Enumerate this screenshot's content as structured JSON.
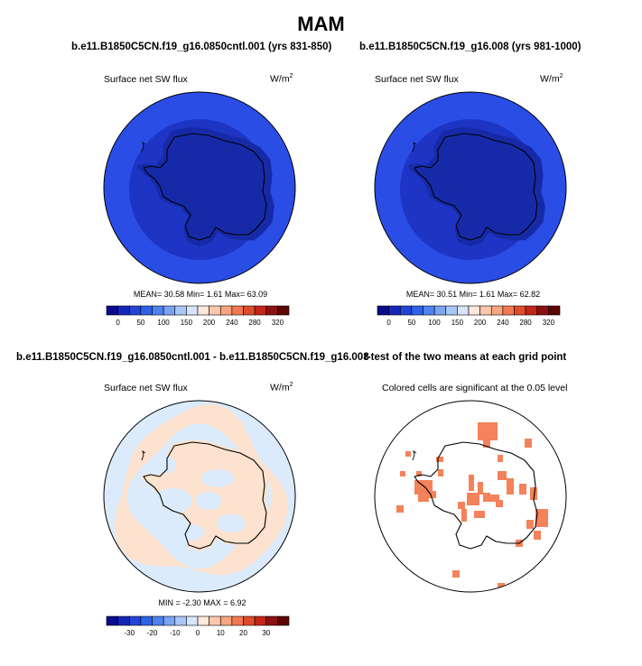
{
  "season_title": "MAM",
  "colors": {
    "abs_scale": [
      "#0a0a8c",
      "#1626b8",
      "#2244d6",
      "#2f62e8",
      "#4f82ef",
      "#7aa3f2",
      "#a8c6f6",
      "#d6e6fa",
      "#fde8dc",
      "#fcc7ac",
      "#f9a57f",
      "#f2784f",
      "#e04b2c",
      "#c2271a",
      "#8c1010",
      "#5e0505"
    ],
    "diff_scale": [
      "#0a0a8c",
      "#1626b8",
      "#2244d6",
      "#2f62e8",
      "#4f82ef",
      "#7aa3f2",
      "#a8c6f6",
      "#d6e6fa",
      "#fde8dc",
      "#fcc7ac",
      "#f9a57f",
      "#f2784f",
      "#e04b2c",
      "#c2271a",
      "#8c1010",
      "#5e0505"
    ],
    "map_outer": "#2a4de6",
    "map_inner": "#1e34c4",
    "map_core": "#162aa8",
    "diff_base": "#dcebfb",
    "diff_pos": "#fde3cf",
    "ttest_sig": "#f4825a"
  },
  "panels": {
    "control": {
      "title": "b.e11.B1850C5CN.f19_g16.0850cntl.001 (yrs 831-850)",
      "subtitle": "Surface net SW flux",
      "units": "W/m",
      "units_exp": "2",
      "stats": "MEAN=  30.58  Min=   1.61  Max=  63.09",
      "colorbar_labels": [
        "0",
        "50",
        "100",
        "150",
        "200",
        "240",
        "280",
        "320"
      ]
    },
    "experiment": {
      "title": "b.e11.B1850C5CN.f19_g16.008 (yrs 981-1000)",
      "subtitle": "Surface net SW flux",
      "units": "W/m",
      "units_exp": "2",
      "stats": "MEAN=  30.51  Min=   1.61  Max=  62.82",
      "colorbar_labels": [
        "0",
        "50",
        "100",
        "150",
        "200",
        "240",
        "280",
        "320"
      ]
    },
    "difference": {
      "title": "b.e11.B1850C5CN.f19_g16.0850cntl.001 - b.e11.B1850C5CN.f19_g16.008",
      "subtitle": "Surface net SW flux",
      "units": "W/m",
      "units_exp": "2",
      "stats": "MIN =  -2.30 MAX =   6.92",
      "colorbar_labels": [
        "-30",
        "-20",
        "-10",
        "0",
        "10",
        "20",
        "30"
      ]
    },
    "ttest": {
      "title": "t-test of the two means at each grid point",
      "subtitle": "Colored cells are significant at the 0.05 level"
    }
  },
  "chart_data": [
    {
      "type": "heatmap",
      "title": "b.e11.B1850C5CN.f19_g16.0850cntl.001 (yrs 831-850)",
      "subtitle": "Surface net SW flux",
      "units": "W/m2",
      "projection": "south-polar-stereographic",
      "mean": 30.58,
      "min": 1.61,
      "max": 63.09,
      "levels": [
        0,
        50,
        100,
        150,
        200,
        240,
        280,
        320
      ]
    },
    {
      "type": "heatmap",
      "title": "b.e11.B1850C5CN.f19_g16.008 (yrs 981-1000)",
      "subtitle": "Surface net SW flux",
      "units": "W/m2",
      "projection": "south-polar-stereographic",
      "mean": 30.51,
      "min": 1.61,
      "max": 62.82,
      "levels": [
        0,
        50,
        100,
        150,
        200,
        240,
        280,
        320
      ]
    },
    {
      "type": "heatmap",
      "title": "b.e11.B1850C5CN.f19_g16.0850cntl.001 - b.e11.B1850C5CN.f19_g16.008",
      "subtitle": "Surface net SW flux",
      "units": "W/m2",
      "projection": "south-polar-stereographic",
      "min": -2.3,
      "max": 6.92,
      "levels": [
        -30,
        -20,
        -10,
        0,
        10,
        20,
        30
      ]
    },
    {
      "type": "heatmap",
      "title": "t-test of the two means at each grid point",
      "subtitle": "Colored cells are significant at the 0.05 level",
      "projection": "south-polar-stereographic",
      "significance_level": 0.05
    }
  ]
}
